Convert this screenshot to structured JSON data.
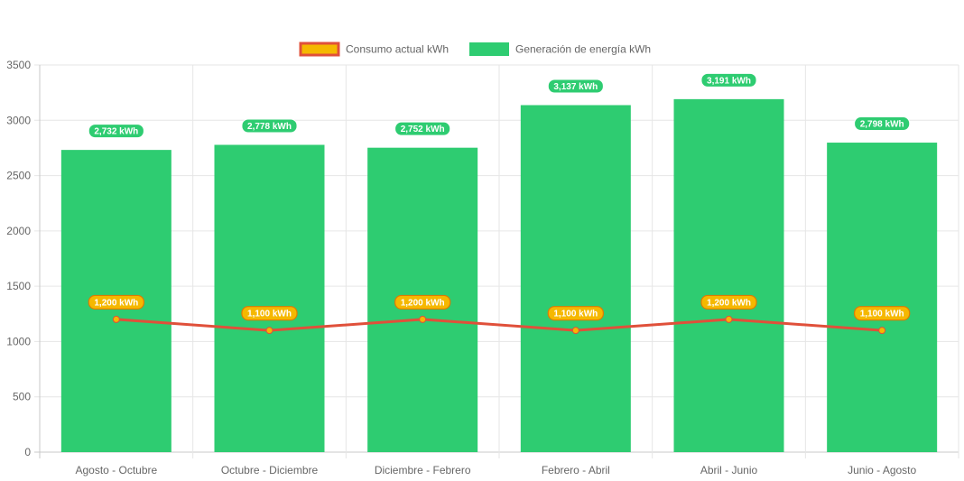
{
  "chart_data": {
    "type": "bar",
    "categories": [
      "Agosto - Octubre",
      "Octubre - Diciembre",
      "Diciembre - Febrero",
      "Febrero - Abril",
      "Abril - Junio",
      "Junio - Agosto"
    ],
    "series": [
      {
        "name": "Consumo actual kWh",
        "type": "line",
        "values": [
          1200,
          1100,
          1200,
          1100,
          1200,
          1100
        ],
        "labels": [
          "1,200 kWh",
          "1,100 kWh",
          "1,200 kWh",
          "1,100 kWh",
          "1,200 kWh",
          "1,100 kWh"
        ],
        "color": "#e0503a",
        "point_color": "#f5b800",
        "label_bg": "#f5b800",
        "label_border": "#e07a00"
      },
      {
        "name": "Generación de energía kWh",
        "type": "bar",
        "values": [
          2732,
          2778,
          2752,
          3137,
          3191,
          2798
        ],
        "labels": [
          "2,732 kWh",
          "2,778 kWh",
          "2,752 kWh",
          "3,137 kWh",
          "3,191 kWh",
          "2,798 kWh"
        ],
        "color": "#2ecc71",
        "label_bg": "#2ecc71"
      }
    ],
    "y_ticks": [
      "0",
      "500",
      "1000",
      "1500",
      "2000",
      "2500",
      "3000",
      "3500"
    ],
    "ylim": [
      0,
      3500
    ],
    "grid": true,
    "legend_position": "top"
  }
}
